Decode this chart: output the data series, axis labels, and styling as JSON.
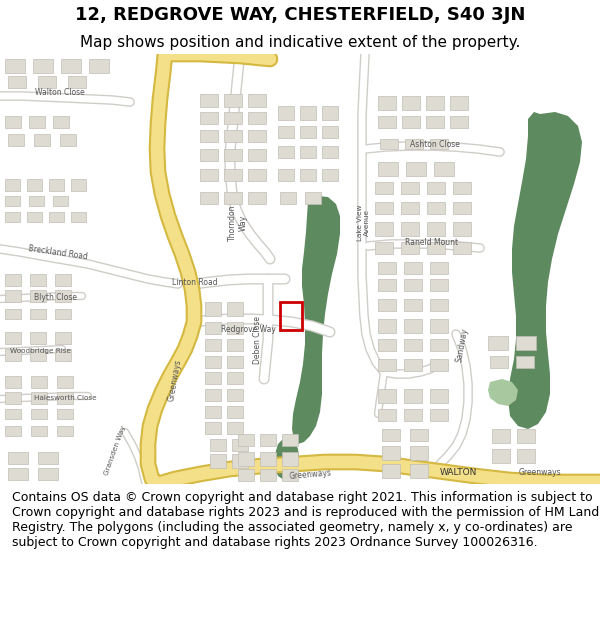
{
  "title_line1": "12, REDGROVE WAY, CHESTERFIELD, S40 3JN",
  "title_line2": "Map shows position and indicative extent of the property.",
  "footer_text": "Contains OS data © Crown copyright and database right 2021. This information is subject to Crown copyright and database rights 2023 and is reproduced with the permission of HM Land Registry. The polygons (including the associated geometry, namely x, y co-ordinates) are subject to Crown copyright and database rights 2023 Ordnance Survey 100026316.",
  "map_bg": "#f2efe9",
  "road_fill": "#ffffff",
  "road_stroke": "#d0cdc8",
  "yellow_road_inner": "#f5e08a",
  "yellow_road_outer": "#d4b840",
  "green_area": "#5d8a5e",
  "green_light": "#a8c8a0",
  "building_fill": "#dedbd3",
  "building_stroke": "#c0bdb5",
  "red_box_color": "#cc0000",
  "white_bg": "#ffffff",
  "title_fontsize": 13,
  "subtitle_fontsize": 11,
  "footer_fontsize": 9,
  "label_color": "#555555"
}
